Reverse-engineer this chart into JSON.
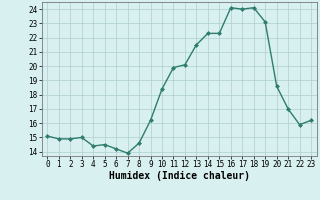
{
  "x": [
    0,
    1,
    2,
    3,
    4,
    5,
    6,
    7,
    8,
    9,
    10,
    11,
    12,
    13,
    14,
    15,
    16,
    17,
    18,
    19,
    20,
    21,
    22,
    23
  ],
  "y": [
    15.1,
    14.9,
    14.9,
    15.0,
    14.4,
    14.5,
    14.2,
    13.9,
    14.6,
    16.2,
    18.4,
    19.9,
    20.1,
    21.5,
    22.3,
    22.3,
    24.1,
    24.0,
    24.1,
    23.1,
    18.6,
    17.0,
    15.9,
    16.2
  ],
  "line_color": "#2e7d6e",
  "marker": "D",
  "marker_size": 2.0,
  "bg_color": "#d8f0f0",
  "grid_color": "#aecece",
  "xlabel": "Humidex (Indice chaleur)",
  "ylabel": "",
  "xlim": [
    -0.5,
    23.5
  ],
  "ylim": [
    13.7,
    24.5
  ],
  "yticks": [
    14,
    15,
    16,
    17,
    18,
    19,
    20,
    21,
    22,
    23,
    24
  ],
  "xticks": [
    0,
    1,
    2,
    3,
    4,
    5,
    6,
    7,
    8,
    9,
    10,
    11,
    12,
    13,
    14,
    15,
    16,
    17,
    18,
    19,
    20,
    21,
    22,
    23
  ],
  "tick_label_fontsize": 5.5,
  "xlabel_fontsize": 7.0,
  "line_width": 1.0
}
